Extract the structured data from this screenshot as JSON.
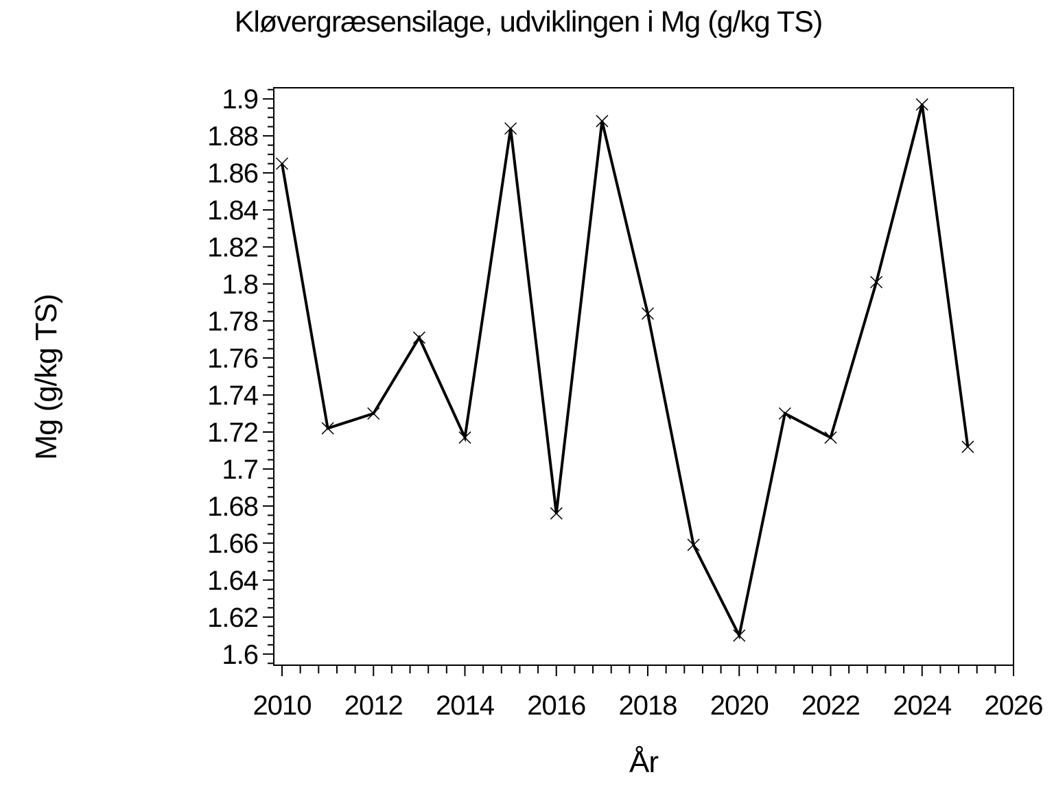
{
  "chart_data": {
    "type": "line",
    "title": "Kløvergræsensilage, udviklingen i Mg (g/kg TS)",
    "xlabel": "År",
    "ylabel": "Mg (g/kg TS)",
    "x": [
      2010,
      2011,
      2012,
      2013,
      2014,
      2015,
      2016,
      2017,
      2018,
      2019,
      2020,
      2021,
      2022,
      2023,
      2024,
      2025
    ],
    "series": [
      {
        "name": "Mg (g/kg TS)",
        "values": [
          1.865,
          1.722,
          1.73,
          1.771,
          1.717,
          1.884,
          1.676,
          1.888,
          1.784,
          1.659,
          1.61,
          1.73,
          1.717,
          1.801,
          1.897,
          1.712
        ]
      }
    ],
    "marker": "x",
    "line_color": "#000000",
    "background_color": "#ffffff",
    "grid": false,
    "legend": null,
    "xlim": [
      2009.82,
      2026.0
    ],
    "ylim": [
      1.594,
      1.906
    ],
    "x_tick_values": [
      2010,
      2012,
      2014,
      2016,
      2018,
      2020,
      2022,
      2024,
      2026
    ],
    "x_tick_labels": [
      "2010",
      "2012",
      "2014",
      "2016",
      "2018",
      "2020",
      "2022",
      "2024",
      "2026"
    ],
    "x_minor_step": 0.4,
    "y_tick_values": [
      1.6,
      1.62,
      1.64,
      1.66,
      1.68,
      1.7,
      1.72,
      1.74,
      1.76,
      1.78,
      1.8,
      1.82,
      1.84,
      1.86,
      1.88,
      1.9
    ],
    "y_tick_labels": [
      "1.6",
      "1.62",
      "1.64",
      "1.66",
      "1.68",
      "1.7",
      "1.72",
      "1.74",
      "1.76",
      "1.78",
      "1.8",
      "1.82",
      "1.84",
      "1.86",
      "1.88",
      "1.9"
    ],
    "y_minor_step": 0.005
  }
}
